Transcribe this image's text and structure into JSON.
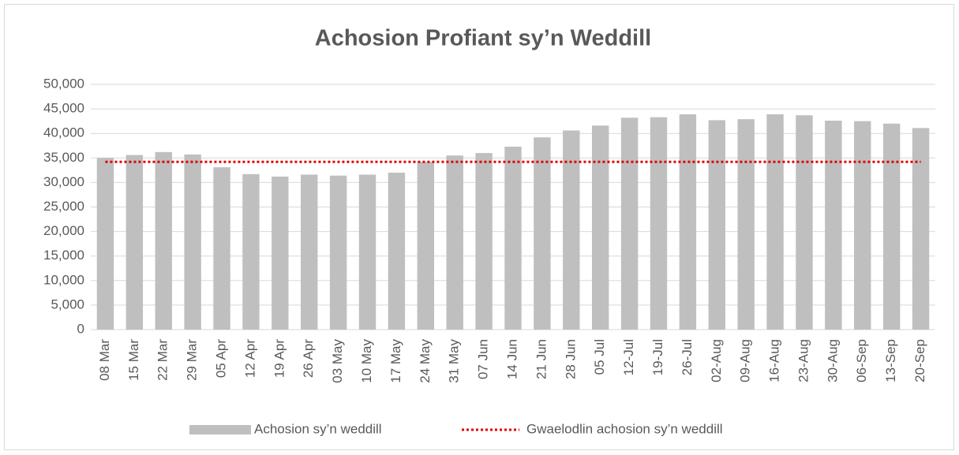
{
  "chart_data": {
    "type": "bar",
    "title": "Achosion Profiant  sy’n Weddill",
    "categories": [
      "08 Mar",
      "15 Mar",
      "22 Mar",
      "29 Mar",
      "05 Apr",
      "12 Apr",
      "19 Apr",
      "26 Apr",
      "03 May",
      "10 May",
      "17 May",
      "24 May",
      "31 May",
      "07 Jun",
      "14 Jun",
      "21 Jun",
      "28 Jun",
      "05 Jul",
      "12-Jul",
      "19-Jul",
      "26-Jul",
      "02-Aug",
      "09-Aug",
      "16-Aug",
      "23-Aug",
      "30-Aug",
      "06-Sep",
      "13-Sep",
      "20-Sep"
    ],
    "series": [
      {
        "name": "Achosion sy’n weddill",
        "type": "bar",
        "color": "#bfbfbf",
        "values": [
          35000,
          35600,
          36200,
          35700,
          33100,
          31700,
          31200,
          31600,
          31400,
          31600,
          32000,
          34200,
          35500,
          36000,
          37300,
          39200,
          40600,
          41600,
          43200,
          43300,
          43900,
          42700,
          42900,
          43900,
          43700,
          42600,
          42500,
          42000,
          41100
        ]
      },
      {
        "name": "Gwaelodlin achosion sy’n weddill",
        "type": "line",
        "color": "#e00000",
        "values": [
          34200,
          34200,
          34200,
          34200,
          34200,
          34200,
          34200,
          34200,
          34200,
          34200,
          34200,
          34200,
          34200,
          34200,
          34200,
          34200,
          34200,
          34200,
          34200,
          34200,
          34200,
          34200,
          34200,
          34200,
          34200,
          34200,
          34200,
          34200,
          34200
        ]
      }
    ],
    "ylim": [
      0,
      50000
    ],
    "yticks": [
      0,
      {
        "value": 5000,
        "label": "5,000"
      },
      {
        "value": 10000,
        "label": "10,000"
      },
      {
        "value": 15000,
        "label": "15,000"
      },
      {
        "value": 20000,
        "label": "20,000"
      },
      {
        "value": 25000,
        "label": "25,000"
      },
      {
        "value": 30000,
        "label": "30,000"
      },
      {
        "value": 35000,
        "label": "35,000"
      },
      {
        "value": 40000,
        "label": "40,000"
      },
      {
        "value": 45000,
        "label": "45,000"
      },
      {
        "value": 50000,
        "label": "50,000"
      }
    ],
    "grid": true,
    "legend": "bottom"
  }
}
